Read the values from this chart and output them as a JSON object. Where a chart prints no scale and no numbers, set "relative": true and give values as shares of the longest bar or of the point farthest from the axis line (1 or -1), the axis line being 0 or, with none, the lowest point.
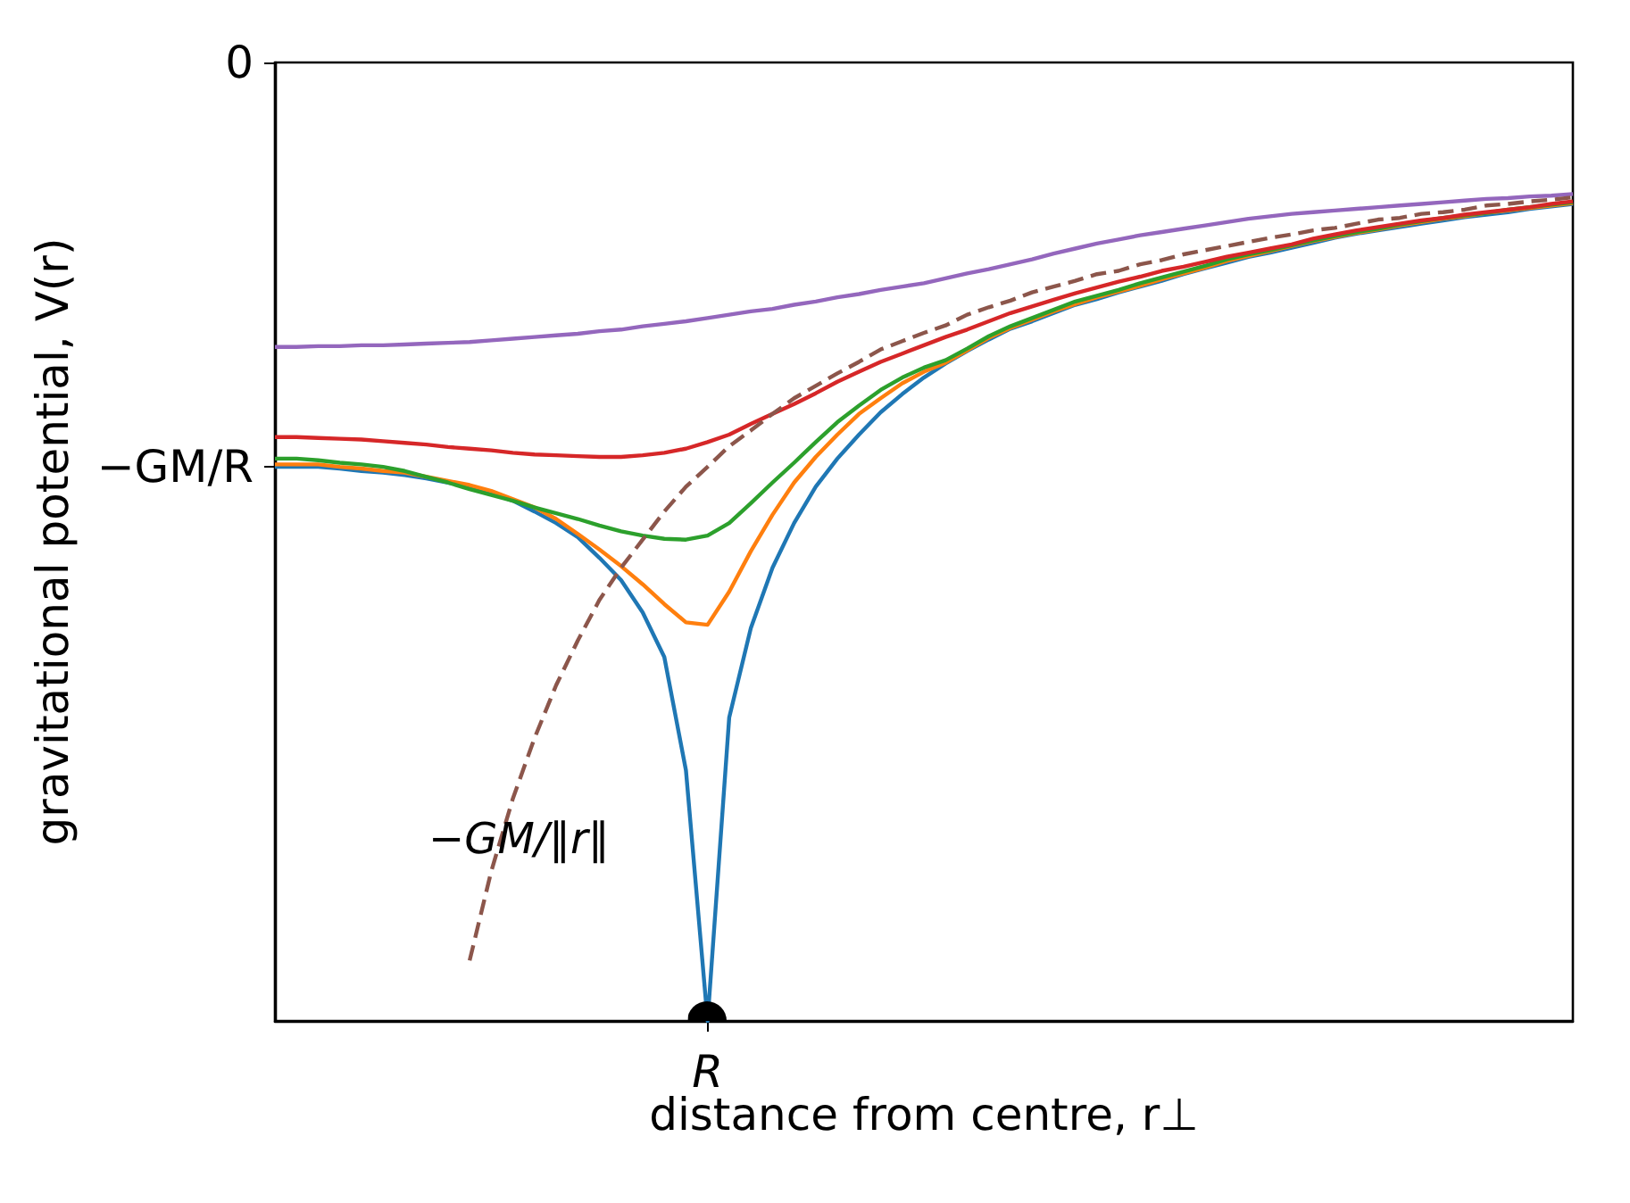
{
  "chart_data": {
    "type": "line",
    "relative": true,
    "xlabel": "distance from centre, r⊥",
    "ylabel": "gravitational potential, V(r)",
    "categories": [
      null,
      null,
      null,
      null,
      null,
      null,
      null,
      null,
      null,
      null,
      null,
      null,
      null,
      null,
      null,
      null,
      null,
      null,
      null,
      null,
      null,
      null,
      null,
      null,
      null,
      null,
      null,
      null,
      null,
      null,
      null,
      null,
      null,
      null,
      null,
      null,
      null,
      null,
      null,
      null,
      null,
      null,
      null,
      null,
      null,
      null,
      null,
      null,
      null,
      null,
      null,
      null,
      null,
      null,
      null,
      null,
      null,
      null,
      null,
      null,
      null
    ],
    "grid": false,
    "marker": "none",
    "line_style": "solid",
    "annotations": [
      "−GM/‖r‖",
      "0",
      "−GM/R",
      "R"
    ],
    "series": [
      {
        "color": "#1f77b4",
        "values": [
          0.67,
          0.67,
          0.67,
          0.668,
          0.665,
          0.663,
          0.66,
          0.656,
          0.651,
          0.646,
          0.638,
          0.629,
          0.616,
          0.602,
          0.585,
          0.56,
          0.533,
          0.494,
          0.44,
          0.303,
          0,
          0.367,
          0.475,
          0.548,
          0.602,
          0.646,
          0.68,
          0.709,
          0.736,
          0.758,
          0.778,
          0.795,
          0.81,
          0.824,
          0.837,
          0.846,
          0.856,
          0.866,
          0.873,
          0.881,
          0.888,
          0.895,
          0.903,
          0.91,
          0.917,
          0.924,
          0.929,
          0.935,
          0.941,
          0.947,
          0.952,
          0.956,
          0.96,
          0.964,
          0.968,
          0.972,
          0.975,
          0.978,
          0.982,
          0.985,
          0.988
        ]
      },
      {
        "color": "#ff7f0e",
        "values": [
          0.673,
          0.673,
          0.673,
          0.67,
          0.668,
          0.665,
          0.663,
          0.658,
          0.653,
          0.648,
          0.641,
          0.631,
          0.621,
          0.607,
          0.589,
          0.57,
          0.55,
          0.528,
          0.504,
          0.482,
          0.479,
          0.519,
          0.568,
          0.612,
          0.651,
          0.682,
          0.709,
          0.734,
          0.753,
          0.771,
          0.785,
          0.796,
          0.811,
          0.826,
          0.838,
          0.848,
          0.858,
          0.867,
          0.875,
          0.882,
          0.889,
          0.897,
          0.904,
          0.911,
          0.919,
          0.925,
          0.931,
          0.937,
          0.943,
          0.948,
          0.953,
          0.957,
          0.962,
          0.966,
          0.97,
          0.973,
          0.977,
          0.98,
          0.983,
          0.986,
          0.989
        ]
      },
      {
        "color": "#2ca02c",
        "values": [
          0.68,
          0.68,
          0.678,
          0.675,
          0.673,
          0.67,
          0.665,
          0.658,
          0.651,
          0.643,
          0.636,
          0.629,
          0.621,
          0.614,
          0.607,
          0.599,
          0.592,
          0.587,
          0.583,
          0.582,
          0.587,
          0.602,
          0.626,
          0.651,
          0.675,
          0.7,
          0.724,
          0.744,
          0.763,
          0.778,
          0.79,
          0.799,
          0.813,
          0.828,
          0.84,
          0.85,
          0.86,
          0.87,
          0.877,
          0.884,
          0.892,
          0.899,
          0.906,
          0.913,
          0.921,
          0.927,
          0.932,
          0.938,
          0.944,
          0.949,
          0.954,
          0.958,
          0.963,
          0.967,
          0.971,
          0.974,
          0.977,
          0.981,
          0.984,
          0.987,
          0.99
        ]
      },
      {
        "color": "#d62728",
        "values": [
          0.706,
          0.706,
          0.705,
          0.704,
          0.703,
          0.701,
          0.699,
          0.697,
          0.694,
          0.692,
          0.69,
          0.687,
          0.685,
          0.684,
          0.683,
          0.682,
          0.682,
          0.684,
          0.687,
          0.692,
          0.7,
          0.709,
          0.722,
          0.734,
          0.746,
          0.759,
          0.773,
          0.785,
          0.797,
          0.807,
          0.817,
          0.827,
          0.836,
          0.846,
          0.856,
          0.864,
          0.872,
          0.88,
          0.887,
          0.894,
          0.9,
          0.907,
          0.912,
          0.918,
          0.924,
          0.929,
          0.934,
          0.939,
          0.946,
          0.951,
          0.956,
          0.96,
          0.964,
          0.968,
          0.971,
          0.975,
          0.978,
          0.981,
          0.984,
          0.988,
          0.991
        ]
      },
      {
        "color": "#9467bd",
        "values": [
          0.815,
          0.815,
          0.816,
          0.816,
          0.817,
          0.817,
          0.818,
          0.819,
          0.82,
          0.821,
          0.823,
          0.825,
          0.827,
          0.829,
          0.831,
          0.834,
          0.836,
          0.84,
          0.843,
          0.846,
          0.85,
          0.854,
          0.858,
          0.861,
          0.866,
          0.87,
          0.875,
          0.879,
          0.884,
          0.888,
          0.892,
          0.898,
          0.904,
          0.909,
          0.915,
          0.921,
          0.928,
          0.934,
          0.94,
          0.945,
          0.95,
          0.954,
          0.958,
          0.962,
          0.966,
          0.97,
          0.973,
          0.976,
          0.978,
          0.98,
          0.982,
          0.984,
          0.986,
          0.988,
          0.99,
          0.992,
          0.994,
          0.995,
          0.997,
          0.998,
          1.0
        ]
      },
      {
        "color": "#8c564b",
        "line_style": "dashed",
        "values": [
          null,
          null,
          null,
          null,
          null,
          null,
          null,
          null,
          null,
          0.073,
          0.181,
          0.269,
          0.342,
          0.406,
          0.46,
          0.509,
          0.548,
          0.582,
          0.616,
          0.646,
          0.67,
          0.695,
          0.714,
          0.734,
          0.753,
          0.768,
          0.783,
          0.797,
          0.812,
          0.822,
          0.832,
          0.841,
          0.854,
          0.863,
          0.871,
          0.881,
          0.888,
          0.895,
          0.903,
          0.907,
          0.915,
          0.92,
          0.927,
          0.932,
          0.937,
          0.942,
          0.947,
          0.951,
          0.956,
          0.959,
          0.964,
          0.969,
          0.971,
          0.976,
          0.978,
          0.981,
          0.986,
          0.988,
          0.991,
          0.993,
          0.996
        ]
      }
    ]
  }
}
